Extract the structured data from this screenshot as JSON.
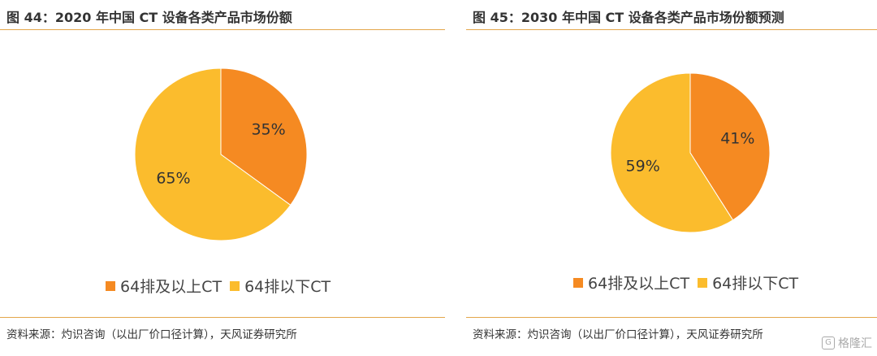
{
  "chart_data": [
    {
      "type": "pie",
      "title": "图 44：2020 年中国 CT 设备各类产品市场份额",
      "categories": [
        "64排及以上CT",
        "64排以下CT"
      ],
      "values": [
        35,
        65
      ],
      "data_labels": [
        "35%",
        "65%"
      ],
      "colors": [
        "#f58a22",
        "#fbbc2d"
      ],
      "legend_position": "bottom",
      "source": "资料来源：灼识咨询（以出厂价口径计算），天风证券研究所"
    },
    {
      "type": "pie",
      "title": "图 45：2030 年中国 CT 设备各类产品市场份额预测",
      "categories": [
        "64排及以上CT",
        "64排以下CT"
      ],
      "values": [
        41,
        59
      ],
      "data_labels": [
        "41%",
        "59%"
      ],
      "colors": [
        "#f58a22",
        "#fbbc2d"
      ],
      "legend_position": "bottom",
      "source": "资料来源：灼识咨询（以出厂价口径计算），天风证券研究所"
    }
  ],
  "watermark": {
    "icon": "gelonghui-logo-icon",
    "text": "格隆汇"
  }
}
